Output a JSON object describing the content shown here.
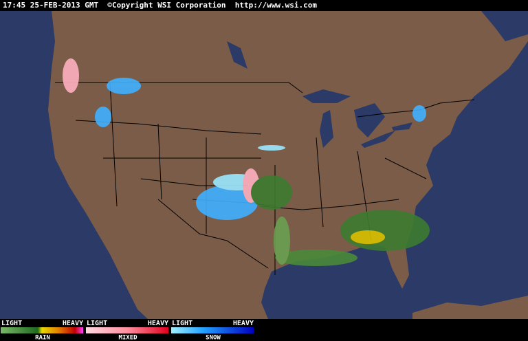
{
  "header": {
    "text": "17:45 25-FEB-2013 GMT  ©Copyright WSI Corporation  http://www.wsi.com"
  },
  "legend": [
    {
      "light": "LIGHT",
      "heavy": "HEAVY",
      "name": "RAIN"
    },
    {
      "light": "LIGHT",
      "heavy": "HEAVY",
      "name": "MIXED"
    },
    {
      "light": "LIGHT",
      "heavy": "HEAVY",
      "name": "SNOW"
    }
  ]
}
